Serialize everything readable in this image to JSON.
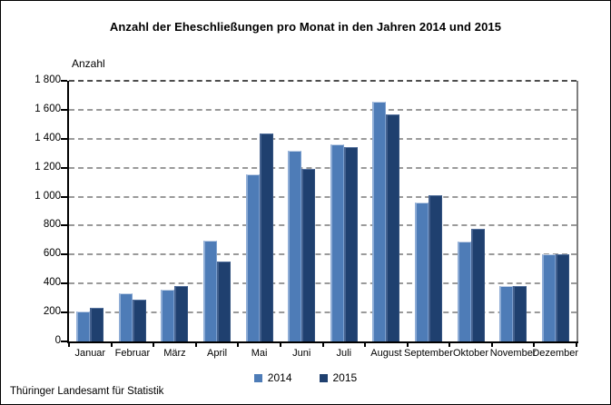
{
  "title": "Anzahl der Eheschließungen pro Monat in den Jahren 2014 und 2015",
  "y_axis_title": "Anzahl",
  "footer": "Thüringer Landesamt für Statistik",
  "legend": {
    "items": [
      {
        "label": "2014",
        "color": "#4e7cb7"
      },
      {
        "label": "2015",
        "color": "#1f406f"
      }
    ]
  },
  "colors": {
    "bar_2014": "#4e7cb7",
    "bar_2015": "#1f406f",
    "gridline": "#9a9a9a",
    "axis": "#000000",
    "right_border": "#7f7f7f"
  },
  "chart_data": {
    "type": "bar",
    "grouped": true,
    "title": "Anzahl der Eheschließungen pro Monat in den Jahren 2014 und 2015",
    "xlabel": "",
    "ylabel": "Anzahl",
    "ylim": [
      0,
      1800
    ],
    "ytick_step": 200,
    "ytick_labels": [
      "0",
      "200",
      "400",
      "600",
      "800",
      "1 000",
      "1 200",
      "1 400",
      "1 600",
      "1 800"
    ],
    "grid": "dashed horizontal",
    "legend_position": "bottom-center",
    "source": "Thüringer Landesamt für Statistik",
    "categories": [
      "Januar",
      "Februar",
      "März",
      "April",
      "Mai",
      "Juni",
      "Juli",
      "August",
      "September",
      "Oktober",
      "November",
      "Dezember"
    ],
    "series": [
      {
        "name": "2014",
        "color": "#4e7cb7",
        "values": [
          205,
          335,
          360,
          695,
          1155,
          1315,
          1360,
          1655,
          960,
          690,
          380,
          600
        ]
      },
      {
        "name": "2015",
        "color": "#1f406f",
        "values": [
          230,
          290,
          385,
          555,
          1435,
          1190,
          1340,
          1565,
          1010,
          780,
          380,
          605
        ]
      }
    ]
  }
}
